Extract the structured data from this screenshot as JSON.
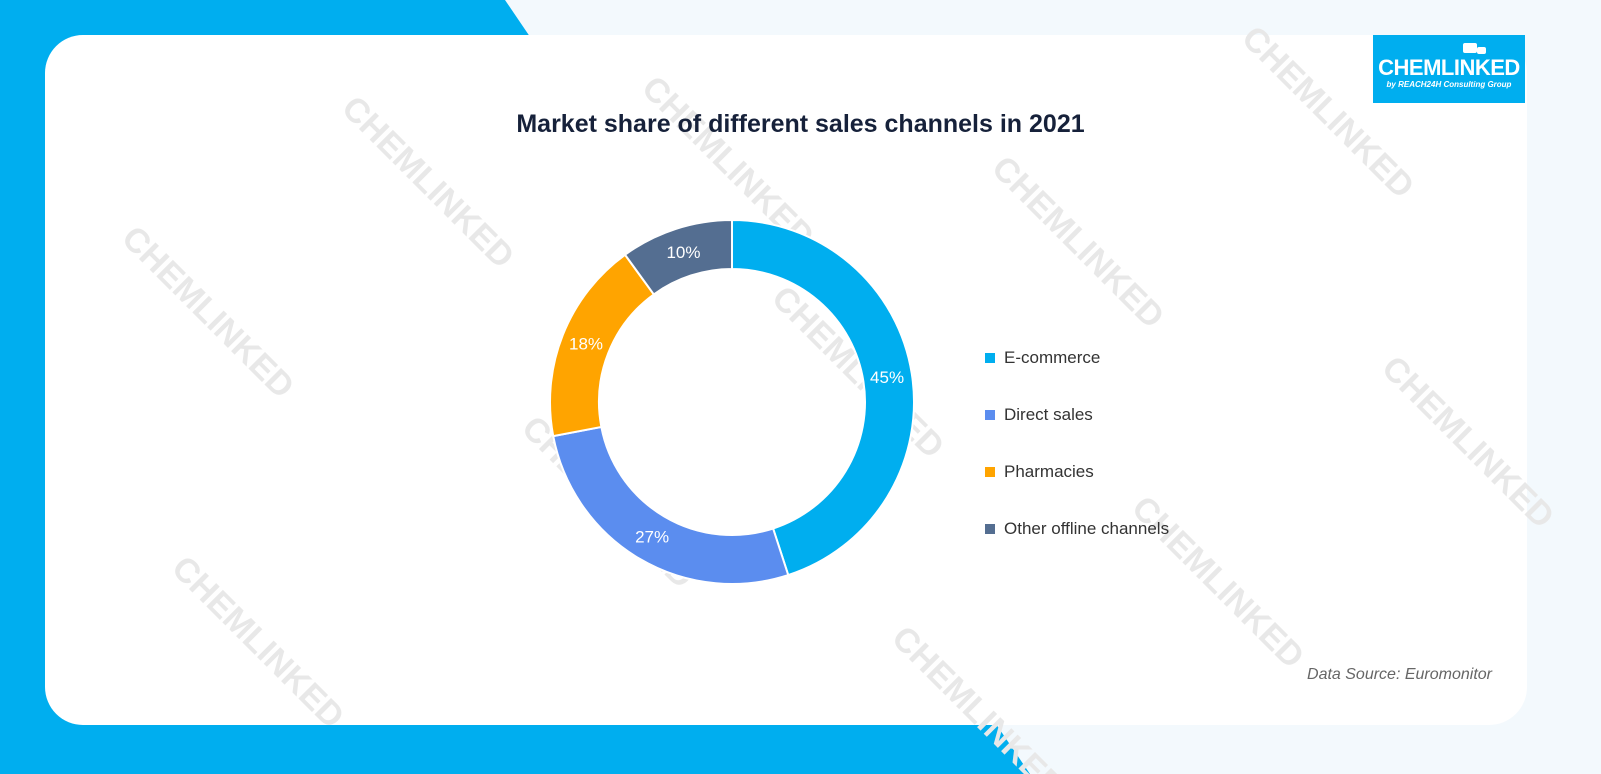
{
  "title": "Market share of different sales channels in 2021",
  "logo": {
    "name": "CHEMLINKED",
    "tagline": "by REACH24H Consulting Group"
  },
  "source": "Data Source: Euromonitor",
  "colors": {
    "background": "#00aeef",
    "card": "#ffffff",
    "light_band": "#f3f9fd"
  },
  "chart_data": {
    "type": "pie",
    "style": "donut",
    "title": "Market share of different sales channels in 2021",
    "legend_position": "right",
    "slices": [
      {
        "name": "E-commerce",
        "value": 45,
        "label": "45%",
        "color": "#00aeef"
      },
      {
        "name": "Direct sales",
        "value": 27,
        "label": "27%",
        "color": "#5b8def"
      },
      {
        "name": "Pharmacies",
        "value": 18,
        "label": "18%",
        "color": "#ffa400"
      },
      {
        "name": "Other offline channels",
        "value": 10,
        "label": "10%",
        "color": "#546e91"
      }
    ]
  }
}
